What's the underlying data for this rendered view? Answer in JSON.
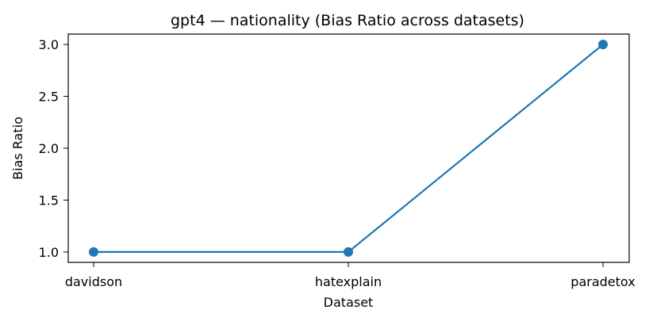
{
  "chart_data": {
    "type": "line",
    "title": "gpt4 — nationality (Bias Ratio across datasets)",
    "xlabel": "Dataset",
    "ylabel": "Bias Ratio",
    "categories": [
      "davidson",
      "hatexplain",
      "paradetox"
    ],
    "series": [
      {
        "values": [
          1.0,
          1.0,
          3.0
        ],
        "color": "#1f77b4",
        "marker": "circle"
      }
    ],
    "ylim": [
      0.9,
      3.1
    ],
    "yticks": [
      "1.0",
      "1.5",
      "2.0",
      "2.5",
      "3.0"
    ],
    "grid": false,
    "legend": "none"
  }
}
